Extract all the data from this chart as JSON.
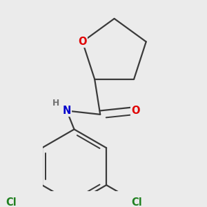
{
  "background_color": "#ebebeb",
  "bond_color": "#3a3a3a",
  "bond_width": 1.6,
  "atom_colors": {
    "O": "#e00000",
    "N": "#0000cc",
    "Cl": "#208020",
    "C": "#3a3a3a",
    "H": "#707070"
  },
  "font_size_atoms": 10.5,
  "fig_size": [
    3.0,
    3.0
  ],
  "dpi": 100
}
